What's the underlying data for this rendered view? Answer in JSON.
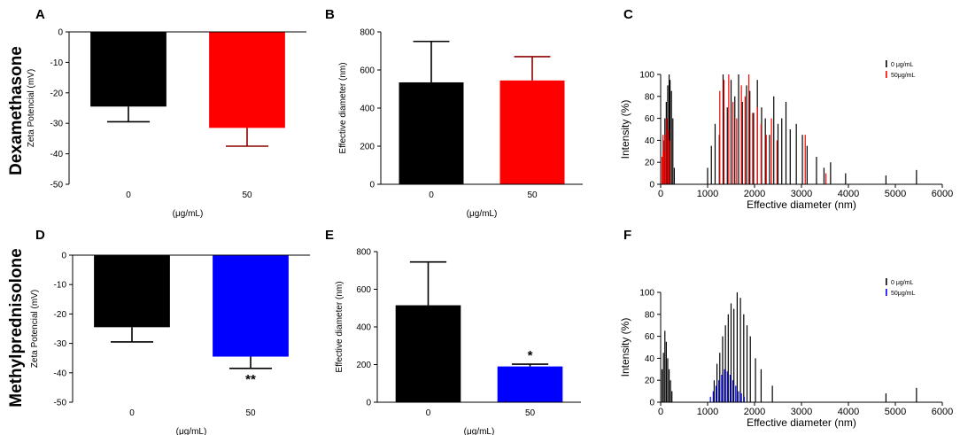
{
  "row_labels": [
    "Dexamethasone",
    "Methylprednisolone"
  ],
  "chart_data": [
    {
      "panel": "A",
      "type": "bar",
      "title": "",
      "categories": [
        "0",
        "50"
      ],
      "values": [
        -24.5,
        -31.5
      ],
      "errors": [
        5,
        6
      ],
      "colors": [
        "#000000",
        "#ff0000"
      ],
      "xlabel": "(μg/mL)",
      "ylabel": "Zeta Potencial (mV)",
      "ylim": [
        -50,
        0
      ],
      "yticks": [
        0,
        -10,
        -20,
        -30,
        -40,
        -50
      ],
      "annotations": [
        "",
        ""
      ]
    },
    {
      "panel": "B",
      "type": "bar",
      "title": "",
      "categories": [
        "0",
        "50"
      ],
      "values": [
        535,
        545
      ],
      "errors": [
        215,
        125
      ],
      "colors": [
        "#000000",
        "#ff0000"
      ],
      "xlabel": "(μg/mL)",
      "ylabel": "Effective diameter (nm)",
      "ylim": [
        0,
        800
      ],
      "yticks": [
        0,
        200,
        400,
        600,
        800
      ],
      "annotations": [
        "",
        ""
      ]
    },
    {
      "panel": "C",
      "type": "bar",
      "title": "",
      "xlabel": "Effective diameter (nm)",
      "ylabel": "Intensity (%)",
      "xlim": [
        0,
        6000
      ],
      "ylim": [
        0,
        100
      ],
      "xticks": [
        0,
        1000,
        2000,
        3000,
        4000,
        5000,
        6000
      ],
      "yticks": [
        0,
        20,
        40,
        60,
        80,
        100
      ],
      "series": [
        {
          "name": "0 μg/mL",
          "color": "#000000",
          "x": [
            60,
            90,
            120,
            150,
            180,
            200,
            230,
            260,
            290,
            1000,
            1080,
            1160,
            1250,
            1330,
            1420,
            1500,
            1580,
            1660,
            1740,
            1830,
            1900,
            1980,
            2060,
            2150,
            2230,
            2320,
            2410,
            2500,
            2580,
            2670,
            2760,
            2890,
            3020,
            3120,
            3320,
            3480,
            3620,
            3940,
            4800,
            5450
          ],
          "values": [
            40,
            60,
            75,
            90,
            100,
            95,
            85,
            60,
            15,
            15,
            35,
            55,
            45,
            100,
            70,
            95,
            80,
            100,
            75,
            90,
            85,
            65,
            95,
            70,
            60,
            45,
            80,
            55,
            60,
            75,
            50,
            55,
            45,
            35,
            25,
            15,
            20,
            10,
            8,
            13
          ]
        },
        {
          "name": "50μg/mL",
          "color": "#ff0000",
          "x": [
            30,
            50,
            70,
            100,
            130,
            160,
            190,
            1260,
            1350,
            1450,
            1540,
            1620,
            1720,
            1800,
            1880,
            1960,
            2060,
            2140,
            2250,
            2360,
            2480,
            3080,
            3520
          ],
          "values": [
            25,
            45,
            30,
            45,
            60,
            50,
            40,
            85,
            95,
            100,
            75,
            60,
            90,
            80,
            100,
            65,
            70,
            55,
            45,
            60,
            40,
            45,
            10
          ]
        }
      ]
    },
    {
      "panel": "D",
      "type": "bar",
      "title": "",
      "categories": [
        "0",
        "50"
      ],
      "values": [
        -24.5,
        -34.5
      ],
      "errors": [
        5,
        4
      ],
      "colors": [
        "#000000",
        "#0000ff"
      ],
      "xlabel": "(μg/mL)",
      "ylabel": "Zeta Potencial (mV)",
      "ylim": [
        -50,
        0
      ],
      "yticks": [
        0,
        -10,
        -20,
        -30,
        -40,
        -50
      ],
      "annotations": [
        "",
        "**"
      ]
    },
    {
      "panel": "E",
      "type": "bar",
      "title": "",
      "categories": [
        "0",
        "50"
      ],
      "values": [
        515,
        190
      ],
      "errors": [
        230,
        12
      ],
      "colors": [
        "#000000",
        "#0000ff"
      ],
      "xlabel": "(μg/mL)",
      "ylabel": "Effective diameter (nm)",
      "ylim": [
        0,
        800
      ],
      "yticks": [
        0,
        200,
        400,
        600,
        800
      ],
      "annotations": [
        "",
        "*"
      ]
    },
    {
      "panel": "F",
      "type": "bar",
      "title": "",
      "xlabel": "Effective diameter (nm)",
      "ylabel": "Intensity (%)",
      "xlim": [
        0,
        6000
      ],
      "ylim": [
        0,
        100
      ],
      "xticks": [
        0,
        1000,
        2000,
        3000,
        4000,
        5000,
        6000
      ],
      "yticks": [
        0,
        20,
        40,
        60,
        80,
        100
      ],
      "series": [
        {
          "name": "0 μg/mL",
          "color": "#000000",
          "x": [
            30,
            60,
            90,
            120,
            150,
            180,
            210,
            240,
            1140,
            1200,
            1260,
            1320,
            1380,
            1440,
            1500,
            1560,
            1630,
            1700,
            1770,
            1840,
            1910,
            2020,
            2140,
            2380,
            4800,
            5450
          ],
          "values": [
            30,
            45,
            65,
            55,
            40,
            30,
            20,
            10,
            20,
            35,
            45,
            60,
            70,
            80,
            90,
            85,
            100,
            95,
            80,
            70,
            60,
            40,
            30,
            15,
            8,
            13
          ]
        },
        {
          "name": "50μg/mL",
          "color": "#0000ff",
          "x": [
            1060,
            1120,
            1180,
            1240,
            1300,
            1360,
            1420,
            1480,
            1540,
            1600,
            1660,
            1720,
            1780
          ],
          "values": [
            5,
            10,
            15,
            20,
            25,
            30,
            28,
            25,
            20,
            15,
            10,
            8,
            5
          ]
        }
      ]
    }
  ]
}
